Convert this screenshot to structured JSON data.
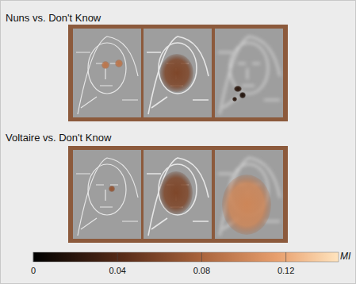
{
  "chart_data": {
    "type": "image_grid",
    "panels": [
      {
        "title": "Nuns vs. Don't Know",
        "images": [
          {
            "blobs": [
              0.09,
              0.09
            ]
          },
          {
            "blobs": [
              0.06
            ]
          },
          {
            "blobs": [
              0.02,
              0.015,
              0.02
            ]
          }
        ]
      },
      {
        "title": "Voltaire vs. Don't Know",
        "images": [
          {
            "blobs": [
              0.07
            ]
          },
          {
            "blobs": [
              0.06
            ]
          },
          {
            "blobs": [
              0.1
            ]
          }
        ]
      }
    ],
    "colorbar": {
      "label": "MI",
      "range": [
        0,
        0.145
      ],
      "ticks": [
        0,
        0.04,
        0.08,
        0.12
      ]
    }
  }
}
